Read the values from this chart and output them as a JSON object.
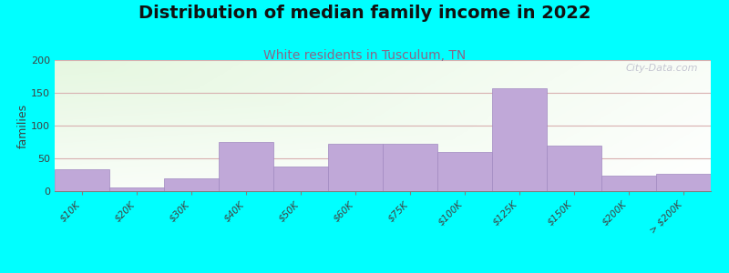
{
  "title": "Distribution of median family income in 2022",
  "subtitle": "White residents in Tusculum, TN",
  "ylabel": "families",
  "background_outer": "#00FFFF",
  "bar_color": "#c0a8d8",
  "bar_edge_color": "#a088c0",
  "categories": [
    "$10K",
    "$20K",
    "$30K",
    "$40K",
    "$50K",
    "$60K",
    "$75K",
    "$100K",
    "$125K",
    "$150K",
    "$200K",
    "> $200K"
  ],
  "values": [
    33,
    5,
    20,
    75,
    38,
    72,
    72,
    60,
    157,
    70,
    23,
    27
  ],
  "ylim": [
    0,
    200
  ],
  "yticks": [
    0,
    50,
    100,
    150,
    200
  ],
  "grid_color": "#d8b0b0",
  "title_fontsize": 14,
  "subtitle_fontsize": 10,
  "subtitle_color": "#886888",
  "watermark": "City-Data.com"
}
